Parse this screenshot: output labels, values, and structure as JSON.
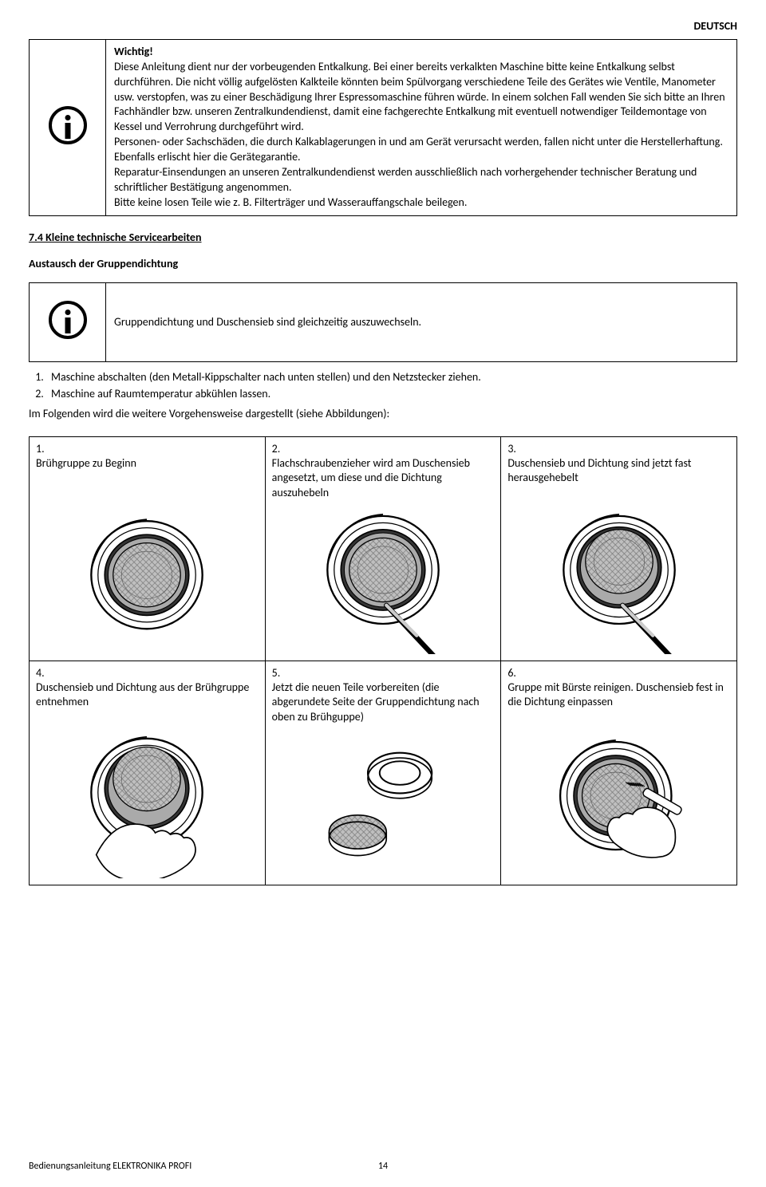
{
  "header": {
    "lang": "DEUTSCH"
  },
  "warning": {
    "title": "Wichtig!",
    "body": "Diese Anleitung dient nur der vorbeugenden Entkalkung. Bei einer bereits verkalkten Maschine bitte keine Entkalkung selbst durchführen. Die nicht völlig aufgelösten Kalkteile könnten beim Spülvorgang verschiedene Teile des Gerätes wie Ventile, Manometer usw. verstopfen, was zu einer Beschädigung Ihrer Espressomaschine führen würde. In einem solchen Fall wenden Sie sich bitte an Ihren Fachhändler bzw. unseren Zentralkundendienst, damit eine fachgerechte Entkalkung mit eventuell notwendiger Teildemontage von Kessel und Verrohrung durchgeführt wird.\nPersonen- oder Sachschäden, die durch Kalkablagerungen in und am Gerät verursacht werden, fallen nicht unter die Herstellerhaftung. Ebenfalls erlischt hier die Gerätegarantie.\nReparatur-Einsendungen an unseren Zentralkundendienst werden ausschließlich nach vorhergehender technischer Beratung und schriftlicher Bestätigung angenommen.\nBitte keine losen Teile wie z. B. Filterträger und Wasserauffangschale beilegen."
  },
  "section74": {
    "heading": "7.4  Kleine technische Servicearbeiten",
    "sub": "Austausch der Gruppendichtung",
    "infobox": "Gruppendichtung und Duschensieb sind gleichzeitig auszuwechseln."
  },
  "list": {
    "item1": "Maschine abschalten (den Metall-Kippschalter nach unten stellen) und den Netzstecker ziehen.",
    "item2": "Maschine auf Raumtemperatur abkühlen lassen."
  },
  "followup": "Im Folgenden wird die weitere Vorgehensweise dargestellt (siehe Abbildungen):",
  "steps": [
    {
      "num": "1.",
      "text": "Brühgruppe zu Beginn"
    },
    {
      "num": "2.",
      "text": "Flachschraubenzieher wird am Duschensieb angesetzt, um diese und die Dichtung auszuhebeln"
    },
    {
      "num": "3.",
      "text": "Duschensieb und Dichtung sind jetzt fast herausgehebelt"
    },
    {
      "num": "4.",
      "text": "Duschensieb und Dichtung aus der Brühgruppe entnehmen"
    },
    {
      "num": "5.",
      "text": "Jetzt die neuen Teile vorbereiten (die abgerundete Seite der Gruppen­dichtung nach oben zu Brühguppe)"
    },
    {
      "num": "6.",
      "text": "Gruppe mit Bürste reinigen. Duschensieb fest in die Dichtung einpassen"
    }
  ],
  "footer": {
    "left": "Bedienungsanleitung ELEKTRONIKA PROFI",
    "page": "14"
  },
  "style": {
    "ring_outer": "#333333",
    "ring_mid": "#999999",
    "mesh": "#888888",
    "stroke": "#000000",
    "bg": "#ffffff"
  }
}
